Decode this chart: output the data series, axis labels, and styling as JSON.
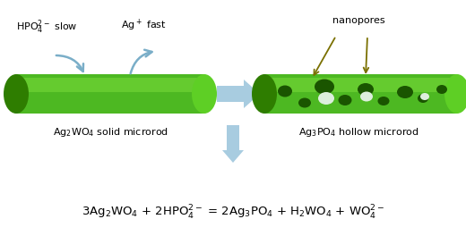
{
  "bg_color": "#ffffff",
  "rod_green_mid": "#4db822",
  "rod_green_dark": "#2e7d00",
  "rod_green_light": "#7adc3a",
  "arrow_color": "#a8cce0",
  "arrow_curve_color": "#7aaec8",
  "nanopore_dark": "#1a5500",
  "nanopore_white": "#e0eed8",
  "annotation_arrow_color": "#7a7000",
  "text_color": "#000000",
  "label_left": "Ag$_2$WO$_4$ solid microrod",
  "label_right": "Ag$_3$PO$_4$ hollow microrod",
  "label_nanopores": "nanopores",
  "label_hpo4": "HPO$_4^{2-}$ slow",
  "label_ag": "Ag$^+$ fast",
  "equation": "3Ag$_2$WO$_4$ + 2HPO$_4^{2-}$ = 2Ag$_3$PO$_4$ + H$_2$WO$_4$ + WO$_4^{2-}$"
}
